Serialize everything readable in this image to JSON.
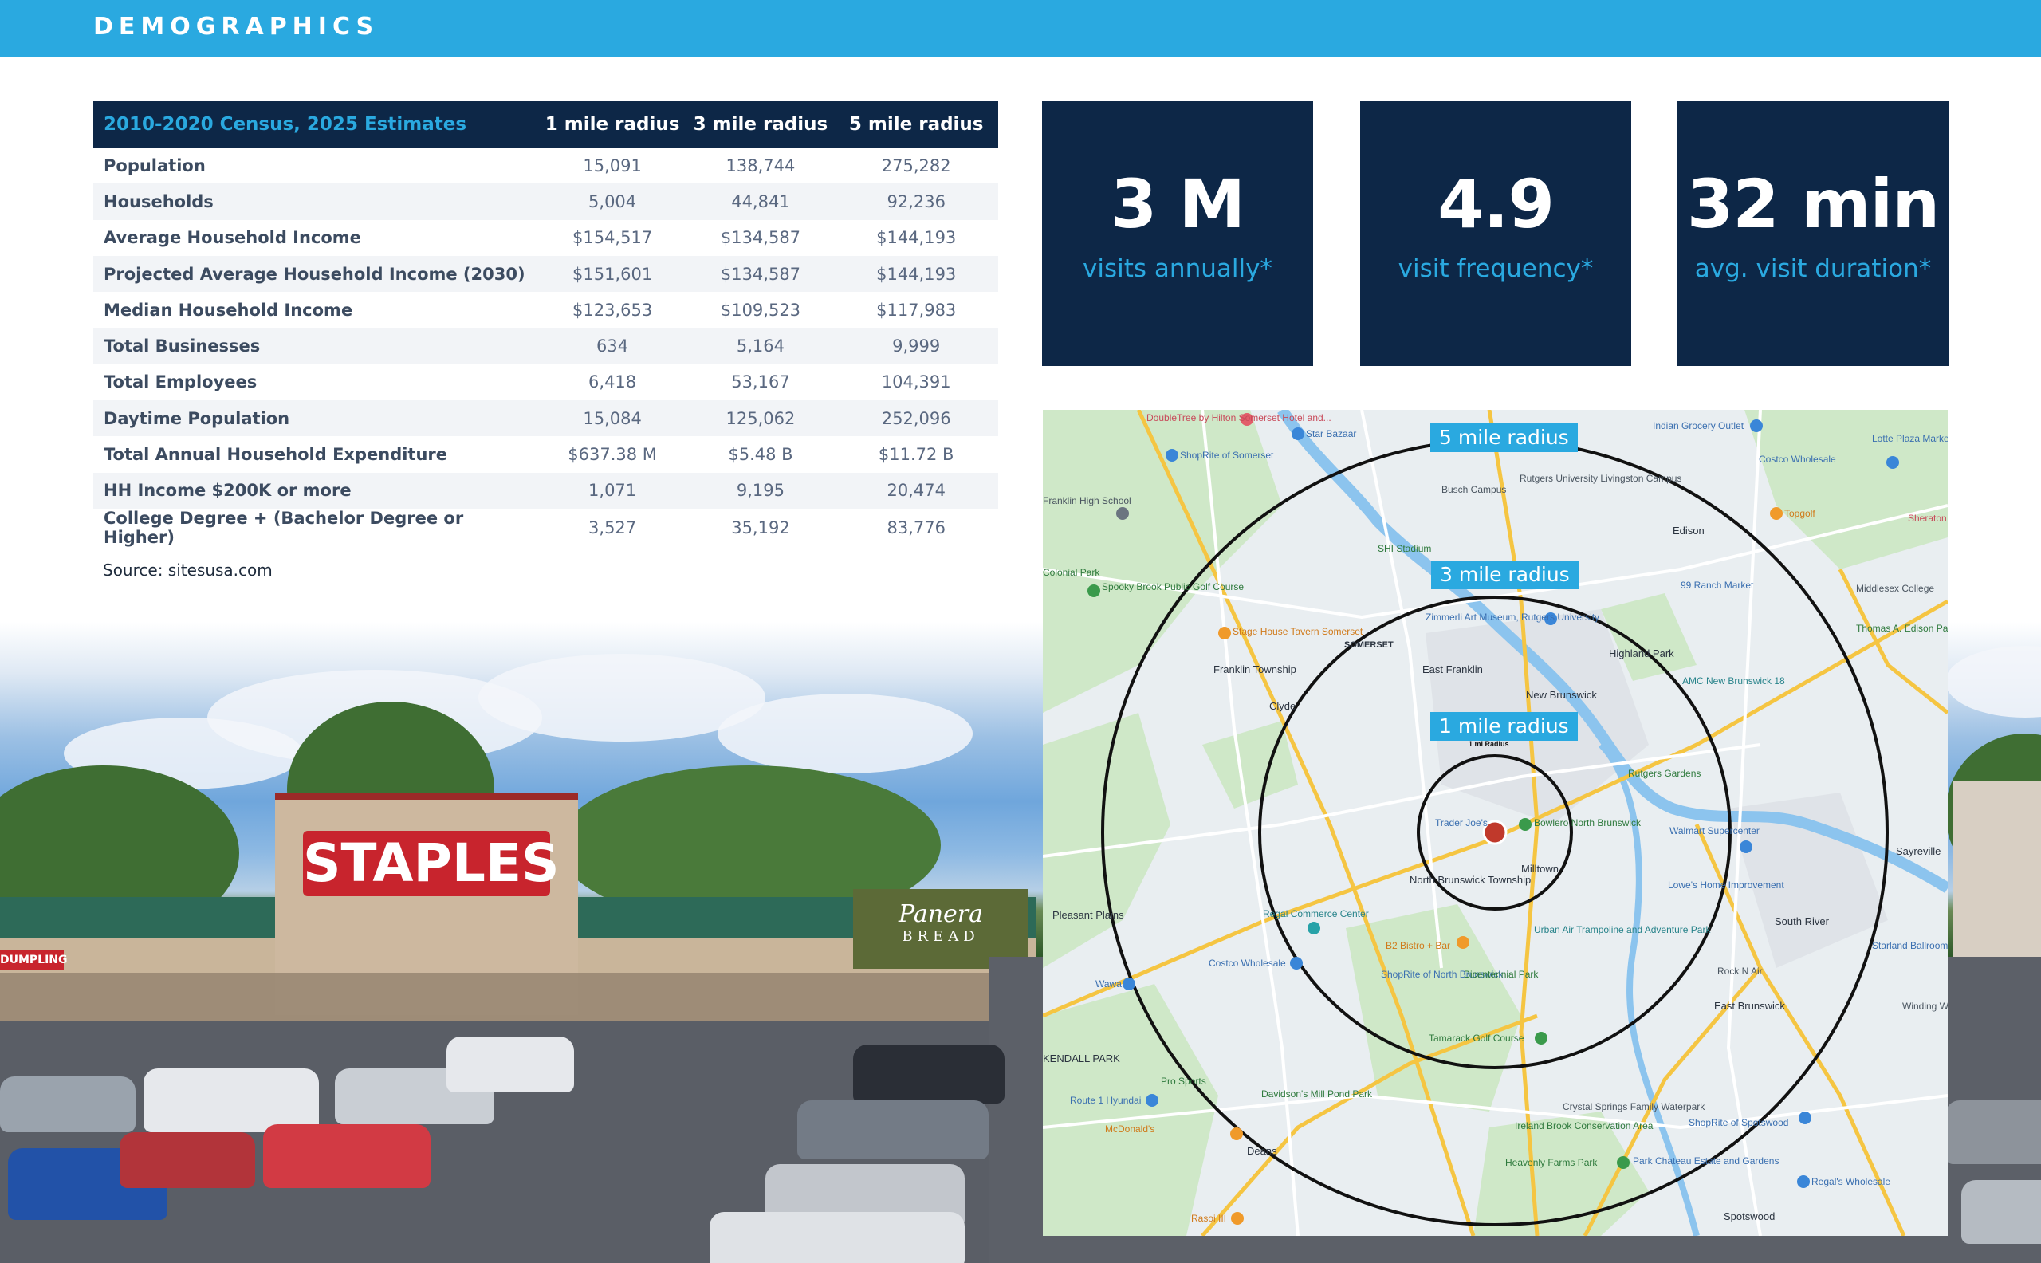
{
  "header": {
    "title": "DEMOGRAPHICS"
  },
  "table": {
    "columns": [
      "2010-2020 Census, 2025 Estimates",
      "1 mile radius",
      "3 mile radius",
      "5 mile radius"
    ],
    "rows": [
      {
        "label": "Population",
        "values": [
          "15,091",
          "138,744",
          "275,282"
        ]
      },
      {
        "label": "Households",
        "values": [
          "5,004",
          "44,841",
          "92,236"
        ]
      },
      {
        "label": "Average Household Income",
        "values": [
          "$154,517",
          "$134,587",
          "$144,193"
        ]
      },
      {
        "label": "Projected Average Household Income (2030)",
        "values": [
          "$151,601",
          "$134,587",
          "$144,193"
        ]
      },
      {
        "label": "Median Household Income",
        "values": [
          "$123,653",
          "$109,523",
          "$117,983"
        ]
      },
      {
        "label": "Total Businesses",
        "values": [
          "634",
          "5,164",
          "9,999"
        ]
      },
      {
        "label": "Total Employees",
        "values": [
          "6,418",
          "53,167",
          "104,391"
        ]
      },
      {
        "label": "Daytime Population",
        "values": [
          "15,084",
          "125,062",
          "252,096"
        ]
      },
      {
        "label": "Total Annual Household Expenditure",
        "values": [
          "$637.38 M",
          "$5.48 B",
          "$11.72 B"
        ]
      },
      {
        "label": "HH Income $200K or more",
        "values": [
          "1,071",
          "9,195",
          "20,474"
        ]
      },
      {
        "label": "College Degree + (Bachelor Degree or Higher)",
        "values": [
          "3,527",
          "35,192",
          "83,776"
        ]
      }
    ],
    "source": "Source: sitesusa.com"
  },
  "stats": [
    {
      "value": "3 M",
      "label": "visits annually*"
    },
    {
      "value": "4.9",
      "label": "visit frequency*"
    },
    {
      "value": "32 min",
      "label": "avg. visit duration*"
    }
  ],
  "map": {
    "ring_labels": [
      "5 mile radius",
      "3 mile radius",
      "1 mile radius"
    ],
    "places": [
      "DoubleTree by Hilton Somerset Hotel and...",
      "Star Bazaar",
      "ShopRite of Somerset",
      "Indian Grocery Outlet",
      "Costco Wholesale",
      "Lotte Plaza Market at Edison",
      "Franklin High School",
      "Rutgers University Livingston Campus",
      "Busch Campus",
      "Topgolf",
      "Sheraton",
      "Edison",
      "SHI Stadium",
      "Colonial Park",
      "Spooky Brook Public Golf Course",
      "Zimmerli Art Museum, Rutgers University",
      "99 Ranch Market",
      "Middlesex College",
      "Stage House Tavern Somerset",
      "Franklin Township",
      "East Franklin",
      "Highland Park",
      "Thomas A. Edison Park",
      "Clyde",
      "AMC New Brunswick 18",
      "Rutgers Gardens",
      "Trader Joe's",
      "Bowlero North Brunswick",
      "Walmart Supercenter",
      "Sayreville",
      "Pleasant Plains",
      "North Brunswick Township",
      "Milltown",
      "Regal Commerce Center",
      "Lowe's Home Improvement",
      "South River",
      "Starland Ballroom",
      "B2 Bistro + Bar",
      "Urban Air Trampoline and Adventure Park",
      "Costco Wholesale",
      "Wawa",
      "ShopRite of North Brunswick",
      "Bicentennial Park",
      "Rock N Air",
      "East Brunswick",
      "Winding Wood Apartments",
      "Tamarack Golf Course",
      "KENDALL PARK",
      "Pro Sports",
      "Davidson's Mill Pond Park",
      "Route 1 Hyundai",
      "McDonald's",
      "Crystal Springs Family Waterpark",
      "ShopRite of Spotswood",
      "Ireland Brook Conservation Area",
      "Deans",
      "Heavenly Farms Park",
      "Park Chateau Estate and Gardens",
      "Regal's Wholesale",
      "Rasoi III",
      "Spotswood",
      "New Brunswick",
      "SOMERSET",
      "1 mi Radius"
    ]
  },
  "photo": {
    "store_sign": "STAPLES",
    "store_sign_2": "Panera",
    "store_sign_3": "BREAD",
    "store_sign_left": "DUMPLING"
  }
}
